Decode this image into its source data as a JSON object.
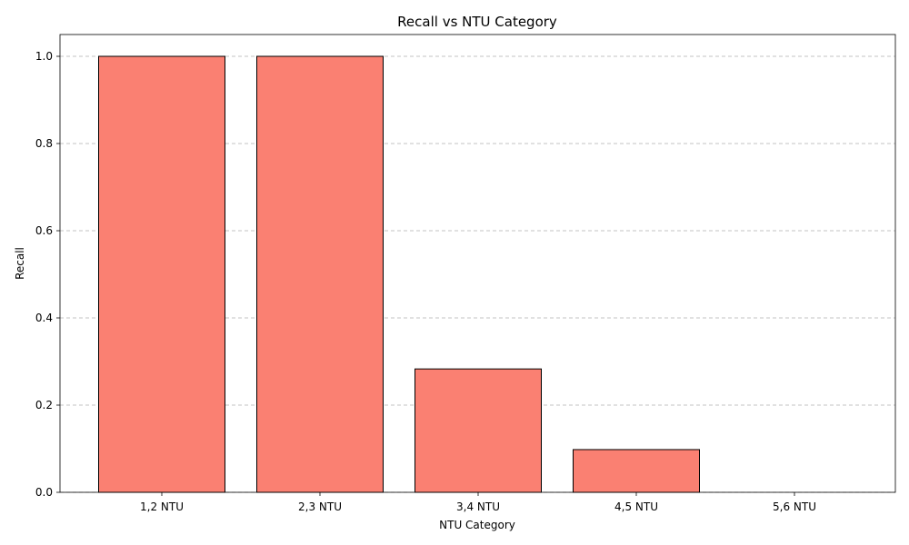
{
  "chart_data": {
    "type": "bar",
    "title": "Recall vs NTU Category",
    "xlabel": "NTU Category",
    "ylabel": "Recall",
    "categories": [
      "1,2 NTU",
      "2,3 NTU",
      "3,4 NTU",
      "4,5 NTU",
      "5,6 NTU"
    ],
    "values": [
      1.0,
      1.0,
      0.283,
      0.098,
      0.0
    ],
    "ylim": [
      0,
      1.05
    ],
    "yticks": [
      0.0,
      0.2,
      0.4,
      0.6,
      0.8,
      1.0
    ],
    "ytick_labels": [
      "0.0",
      "0.2",
      "0.4",
      "0.6",
      "0.8",
      "1.0"
    ],
    "grid": "y-dashed",
    "bar_color": "#fa8072",
    "edge_color": "#000000"
  }
}
